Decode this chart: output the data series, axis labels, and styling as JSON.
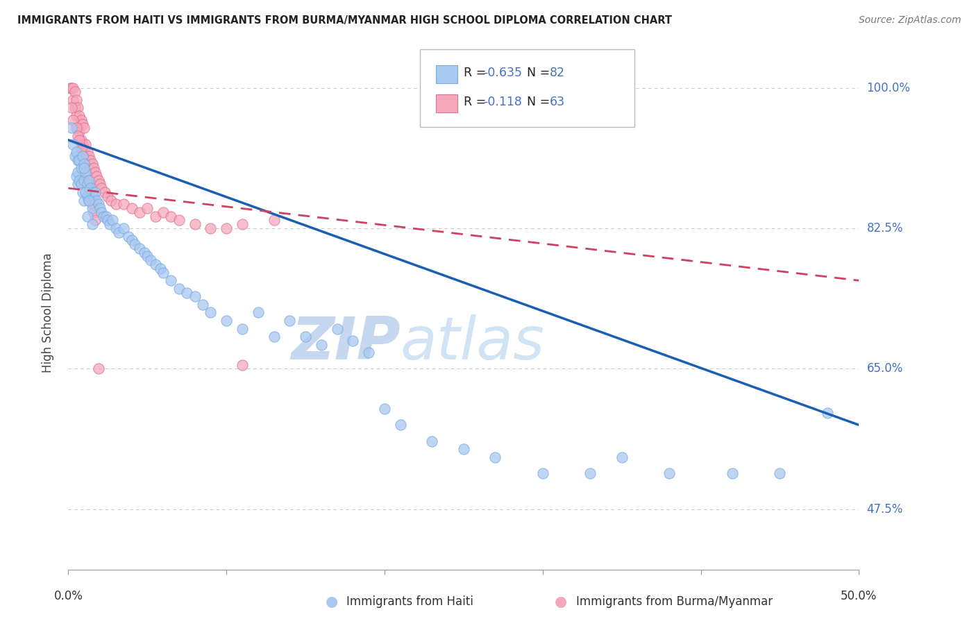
{
  "title": "IMMIGRANTS FROM HAITI VS IMMIGRANTS FROM BURMA/MYANMAR HIGH SCHOOL DIPLOMA CORRELATION CHART",
  "source": "Source: ZipAtlas.com",
  "ylabel": "High School Diploma",
  "xmin": 0.0,
  "xmax": 50.0,
  "ymin": 40.0,
  "ymax": 104.0,
  "yticks": [
    47.5,
    65.0,
    82.5,
    100.0
  ],
  "ytick_labels": [
    "47.5%",
    "65.0%",
    "82.5%",
    "100.0%"
  ],
  "legend_r_haiti": "-0.635",
  "legend_n_haiti": "82",
  "legend_r_burma": "-0.118",
  "legend_n_burma": "63",
  "haiti_color": "#a8c8f0",
  "haiti_edge_color": "#7aabdf",
  "burma_color": "#f5a8bc",
  "burma_edge_color": "#e07090",
  "haiti_line_color": "#1a5fb4",
  "burma_line_color": "#d04060",
  "watermark_zip": "ZIP",
  "watermark_atlas": "atlas",
  "watermark_color": "#c5d8f0",
  "haiti_line_x0": 0.0,
  "haiti_line_y0": 93.5,
  "haiti_line_x1": 50.0,
  "haiti_line_y1": 58.0,
  "burma_line_x0": 0.0,
  "burma_line_y0": 87.5,
  "burma_line_x1": 50.0,
  "burma_line_y1": 76.0,
  "haiti_x": [
    0.2,
    0.3,
    0.4,
    0.5,
    0.5,
    0.6,
    0.6,
    0.6,
    0.7,
    0.7,
    0.8,
    0.8,
    0.9,
    0.9,
    1.0,
    1.0,
    1.0,
    1.1,
    1.2,
    1.2,
    1.3,
    1.3,
    1.4,
    1.5,
    1.5,
    1.6,
    1.7,
    1.8,
    1.9,
    2.0,
    2.1,
    2.2,
    2.4,
    2.5,
    2.6,
    2.8,
    3.0,
    3.2,
    3.5,
    3.8,
    4.0,
    4.2,
    4.5,
    4.8,
    5.0,
    5.2,
    5.5,
    5.8,
    6.0,
    6.5,
    7.0,
    7.5,
    8.0,
    8.5,
    9.0,
    10.0,
    11.0,
    12.0,
    13.0,
    14.0,
    15.0,
    16.0,
    17.0,
    18.0,
    19.0,
    20.0,
    21.0,
    23.0,
    25.0,
    27.0,
    30.0,
    33.0,
    35.0,
    38.0,
    42.0,
    45.0,
    48.0,
    1.0,
    1.1,
    1.2,
    1.3,
    1.5
  ],
  "haiti_y": [
    95.0,
    93.0,
    91.5,
    92.0,
    89.0,
    91.0,
    89.5,
    88.0,
    91.0,
    88.5,
    90.0,
    88.0,
    91.5,
    87.0,
    90.5,
    88.5,
    86.0,
    89.5,
    88.0,
    86.5,
    88.5,
    86.0,
    87.5,
    87.0,
    85.0,
    86.5,
    87.0,
    86.0,
    85.5,
    85.0,
    84.5,
    84.0,
    84.0,
    83.5,
    83.0,
    83.5,
    82.5,
    82.0,
    82.5,
    81.5,
    81.0,
    80.5,
    80.0,
    79.5,
    79.0,
    78.5,
    78.0,
    77.5,
    77.0,
    76.0,
    75.0,
    74.5,
    74.0,
    73.0,
    72.0,
    71.0,
    70.0,
    72.0,
    69.0,
    71.0,
    69.0,
    68.0,
    70.0,
    68.5,
    67.0,
    60.0,
    58.0,
    56.0,
    55.0,
    54.0,
    52.0,
    52.0,
    54.0,
    52.0,
    52.0,
    52.0,
    59.5,
    90.0,
    87.0,
    84.0,
    86.0,
    83.0
  ],
  "burma_x": [
    0.1,
    0.2,
    0.3,
    0.3,
    0.4,
    0.4,
    0.5,
    0.5,
    0.6,
    0.6,
    0.7,
    0.7,
    0.8,
    0.8,
    0.9,
    0.9,
    1.0,
    1.0,
    1.1,
    1.2,
    1.3,
    1.4,
    1.5,
    1.6,
    1.7,
    1.8,
    1.9,
    2.0,
    2.1,
    2.3,
    2.5,
    2.7,
    3.0,
    3.5,
    4.0,
    4.5,
    5.0,
    5.5,
    6.0,
    6.5,
    7.0,
    8.0,
    9.0,
    10.0,
    11.0,
    13.0,
    0.2,
    0.3,
    0.5,
    0.6,
    0.7,
    0.8,
    0.9,
    1.0,
    1.1,
    1.2,
    1.3,
    1.4,
    1.5,
    1.6,
    1.7,
    1.9,
    11.0
  ],
  "burma_y": [
    100.0,
    100.0,
    100.0,
    98.5,
    99.5,
    97.5,
    98.5,
    96.5,
    97.5,
    95.0,
    96.5,
    94.5,
    96.0,
    93.5,
    95.5,
    93.0,
    95.0,
    92.5,
    93.0,
    92.0,
    91.5,
    91.0,
    90.5,
    90.0,
    89.5,
    89.0,
    88.5,
    88.0,
    87.5,
    87.0,
    86.5,
    86.0,
    85.5,
    85.5,
    85.0,
    84.5,
    85.0,
    84.0,
    84.5,
    84.0,
    83.5,
    83.0,
    82.5,
    82.5,
    83.0,
    83.5,
    97.5,
    96.0,
    95.0,
    94.0,
    93.5,
    92.5,
    91.5,
    90.5,
    89.5,
    88.5,
    87.5,
    86.5,
    85.5,
    84.5,
    83.5,
    65.0,
    65.5
  ]
}
